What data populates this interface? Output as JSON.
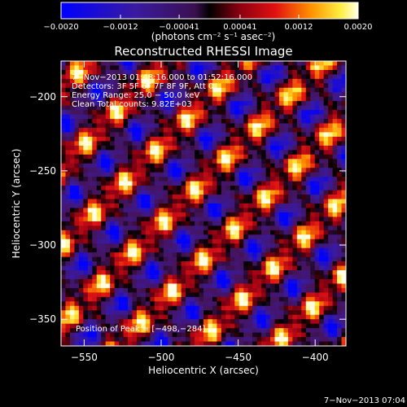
{
  "chart_data": {
    "type": "heatmap",
    "title": "Reconstructed RHESSI Image",
    "xlabel": "Heliocentric X (arcsec)",
    "ylabel": "Heliocentric Y (arcsec)",
    "xlim": [
      -565,
      -380
    ],
    "ylim": [
      -368,
      -176
    ],
    "xticks": [
      -550,
      -500,
      -450,
      -400
    ],
    "yticks": [
      -200,
      -250,
      -300,
      -350
    ],
    "xtick_labels": [
      "−550",
      "−500",
      "−450",
      "−400"
    ],
    "ytick_labels": [
      "−200",
      "−250",
      "−300",
      "−350"
    ],
    "colorbar": {
      "min": -0.002,
      "max": 0.002,
      "ticks": [
        -0.002,
        -0.0012,
        -0.00041,
        0.00041,
        0.0012,
        0.002
      ],
      "tick_labels": [
        "−0.0020",
        "−0.0012",
        "−0.00041",
        "0.00041",
        "0.0012",
        "0.0020"
      ],
      "label_main": "(photons cm",
      "label_sup1": "−2",
      "label_mid1": " s",
      "label_sup2": "−1",
      "label_mid2": " asec",
      "label_sup3": "−2",
      "label_end": ")"
    },
    "info_lines": [
      "7−Nov−2013 01:48:16.000 to 01:52:16.000",
      "Detectors: 3F 5F 6F 7F 8F 9F, Att 0",
      "Energy Range: 25.0 − 50.0 keV",
      "Clean    Total counts: 9.82E+03"
    ],
    "peak_label": "Position of Peak = [−498,−284]",
    "peak_x": -498,
    "peak_y": -284,
    "grid": false
  },
  "timestamp": "7−Nov−2013 07:04",
  "colors": {
    "background": "#000000",
    "foreground": "#ffffff"
  }
}
